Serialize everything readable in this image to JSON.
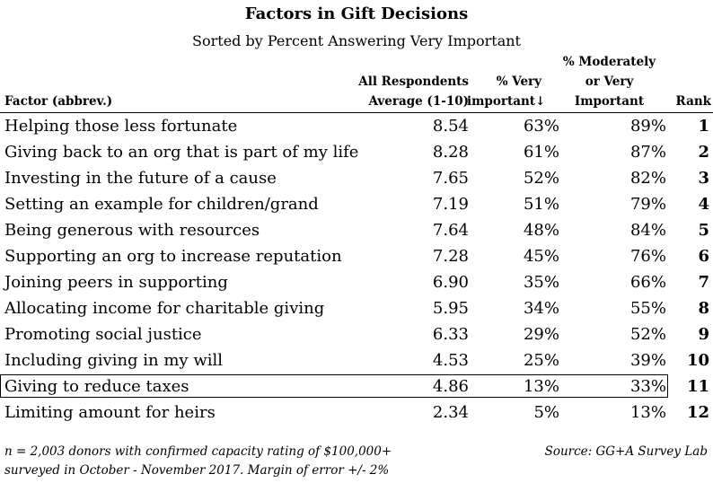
{
  "chart_data": {
    "type": "table",
    "title": "Factors in Gift Decisions",
    "subtitle": "Sorted by Percent Answering Very Important",
    "columns": [
      "Factor (abbrev.)",
      "All Respondents Average (1-10)",
      "% Very important↓",
      "% Moderately or Very Important",
      "Rank"
    ],
    "rows": [
      {
        "factor": "Helping those less fortunate",
        "avg": "8.54",
        "very": "63%",
        "mod": "89%",
        "rank": "1"
      },
      {
        "factor": "Giving back to an org that is part of my life",
        "avg": "8.28",
        "very": "61%",
        "mod": "87%",
        "rank": "2"
      },
      {
        "factor": "Investing in the future of a cause",
        "avg": "7.65",
        "very": "52%",
        "mod": "82%",
        "rank": "3"
      },
      {
        "factor": "Setting an example for children/grand",
        "avg": "7.19",
        "very": "51%",
        "mod": "79%",
        "rank": "4"
      },
      {
        "factor": "Being generous with resources",
        "avg": "7.64",
        "very": "48%",
        "mod": "84%",
        "rank": "5"
      },
      {
        "factor": "Supporting an org to increase reputation",
        "avg": "7.28",
        "very": "45%",
        "mod": "76%",
        "rank": "6"
      },
      {
        "factor": "Joining peers in supporting",
        "avg": "6.90",
        "very": "35%",
        "mod": "66%",
        "rank": "7"
      },
      {
        "factor": "Allocating income for charitable giving",
        "avg": "5.95",
        "very": "34%",
        "mod": "55%",
        "rank": "8"
      },
      {
        "factor": "Promoting social justice",
        "avg": "6.33",
        "very": "29%",
        "mod": "52%",
        "rank": "9"
      },
      {
        "factor": "Including giving in my will",
        "avg": "4.53",
        "very": "25%",
        "mod": "39%",
        "rank": "10"
      },
      {
        "factor": "Giving to reduce taxes",
        "avg": "4.86",
        "very": "13%",
        "mod": "33%",
        "rank": "11",
        "highlighted": true
      },
      {
        "factor": "Limiting amount for heirs",
        "avg": "2.34",
        "very": "5%",
        "mod": "13%",
        "rank": "12"
      }
    ],
    "footnote_lines": [
      "n = 2,003 donors with confirmed capacity rating of $100,000+",
      "surveyed in October - November 2017. Margin of error +/- 2%"
    ],
    "source": "Source: GG+A Survey Lab"
  },
  "headers": {
    "factor": "Factor (abbrev.)",
    "avg_line1": "All Respondents",
    "avg_line2": "Average (1-10)",
    "very_line1": "% Very",
    "very_line2": "important↓",
    "mod_line1": "% Moderately",
    "mod_line2": "or Very",
    "mod_line3": "Important",
    "rank": "Rank"
  }
}
